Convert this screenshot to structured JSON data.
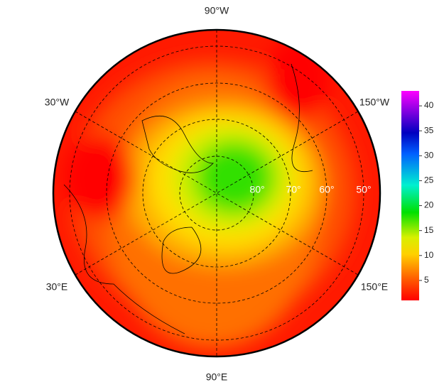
{
  "map": {
    "longitude_labels": [
      "90°W",
      "30°W",
      "150°W",
      "30°E",
      "150°E",
      "90°E"
    ],
    "latitude_labels": [
      "80°",
      "70°",
      "60°",
      "50°"
    ]
  },
  "colorbar": {
    "range": [
      1,
      43
    ],
    "ticks": [
      5,
      10,
      15,
      20,
      25,
      30,
      35,
      40
    ]
  }
}
